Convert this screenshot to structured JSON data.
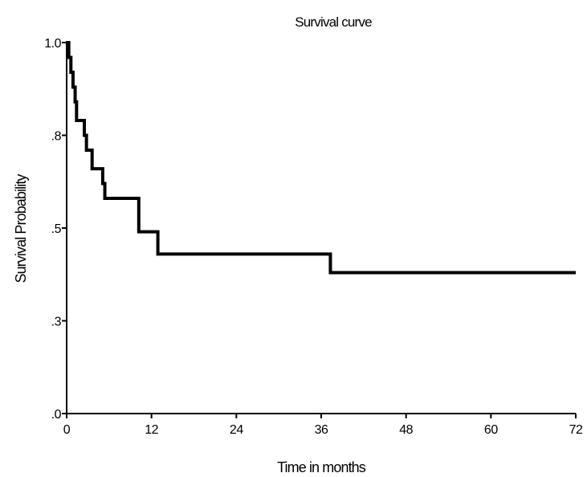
{
  "chart_data": {
    "type": "line",
    "subtype": "step",
    "title": "Survival curve",
    "xlabel": "Time in months",
    "ylabel": "Survival Probability",
    "xlim": [
      0,
      72
    ],
    "ylim": [
      0,
      1
    ],
    "x_ticks": [
      {
        "value": 0,
        "label": "0"
      },
      {
        "value": 12,
        "label": "12"
      },
      {
        "value": 24,
        "label": "24"
      },
      {
        "value": 36,
        "label": "36"
      },
      {
        "value": 48,
        "label": "48"
      },
      {
        "value": 60,
        "label": "60"
      },
      {
        "value": 72,
        "label": "72"
      }
    ],
    "y_ticks": [
      {
        "value": 0.0,
        "label": ".0"
      },
      {
        "value": 0.25,
        "label": ".3"
      },
      {
        "value": 0.5,
        "label": ".5"
      },
      {
        "value": 0.75,
        "label": ".8"
      },
      {
        "value": 1.0,
        "label": "1.0"
      }
    ],
    "grid": false,
    "series": [
      {
        "color": "#000000",
        "points": [
          {
            "x": 0,
            "y": 1.0
          },
          {
            "x": 0.3,
            "y": 0.96
          },
          {
            "x": 0.6,
            "y": 0.92
          },
          {
            "x": 0.9,
            "y": 0.88
          },
          {
            "x": 1.2,
            "y": 0.84
          },
          {
            "x": 1.4,
            "y": 0.79
          },
          {
            "x": 2.5,
            "y": 0.75
          },
          {
            "x": 2.8,
            "y": 0.71
          },
          {
            "x": 3.6,
            "y": 0.66
          },
          {
            "x": 5.1,
            "y": 0.62
          },
          {
            "x": 5.4,
            "y": 0.58
          },
          {
            "x": 10.2,
            "y": 0.49
          },
          {
            "x": 12.9,
            "y": 0.43
          },
          {
            "x": 37.3,
            "y": 0.38
          },
          {
            "x": 72.0,
            "y": 0.38
          }
        ]
      }
    ]
  }
}
